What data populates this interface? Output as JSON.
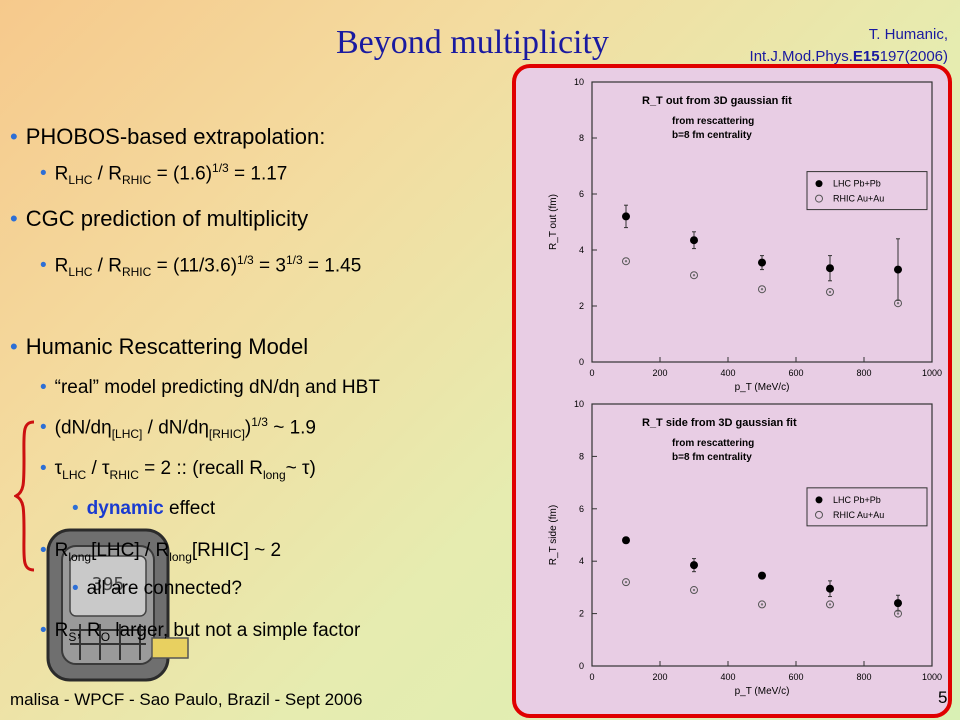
{
  "title": "Beyond multiplicity",
  "citation": {
    "line1": "T. Humanic,",
    "journal": "Int.J.Mod.Phys.",
    "vol": "E15",
    "pages": "197(2006)"
  },
  "bullets": {
    "b1": "PHOBOS-based extrapolation:",
    "b1a": {
      "r": "R",
      "s1": "LHC",
      "mid": " / R",
      "s2": "RHIC",
      "eq": " = (1.6)",
      "p": "1/3",
      "tail": " = 1.17"
    },
    "b2": "CGC prediction of multiplicity",
    "b2a": {
      "r": "R",
      "s1": "LHC",
      "mid": " / R",
      "s2": "RHIC",
      "eq": " = (11/3.6)",
      "p": "1/3",
      "mid2": " = 3",
      "p2": "1/3",
      "tail": " = 1.45"
    },
    "b3": "Humanic Rescattering Model",
    "b3a": "“real” model predicting dN/dη and HBT",
    "b3b": {
      "a": "(dN/dη",
      "s1": "[LHC]",
      "b": " / dN/dη",
      "s2": "[RHIC]",
      "c": ")",
      "p": "1/3",
      "d": " ~ 1.9"
    },
    "b3c": {
      "a": "τ",
      "s1": "LHC",
      "b": " / τ",
      "s2": "RHIC",
      "c": " = 2   ::  (recall R",
      "s3": "long",
      "d": "~ τ)"
    },
    "b3d": {
      "emph": "dynamic",
      "rest": " effect"
    },
    "b3e": {
      "a": "R",
      "s1": "long",
      "b": "[LHC] / R",
      "s2": "long",
      "c": "[RHIC] ~ 2"
    },
    "b3f": "all are connected?",
    "b3g": {
      "a": "R",
      "s1": "S",
      "b": ", R",
      "s2": "O",
      "c": " larger, but not a simple factor"
    }
  },
  "footer": "malisa - WPCF - Sao Paulo, Brazil - Sept 2006",
  "page_number": "5",
  "chart_data": [
    {
      "type": "scatter",
      "title": "R_T out from 3D gaussian fit",
      "annotation": [
        "from rescattering",
        "b=8 fm centrality"
      ],
      "xlabel": "p_T (MeV/c)",
      "ylabel": "R_T out (fm)",
      "xlim": [
        0,
        1000
      ],
      "ylim": [
        0,
        10
      ],
      "xticks": [
        "0",
        "200",
        "400",
        "600",
        "800",
        "1000"
      ],
      "yticks": [
        "0",
        "2",
        "4",
        "6",
        "8",
        "10"
      ],
      "legend_placement": "right",
      "series": [
        {
          "name": "LHC Pb+Pb",
          "x": [
            100,
            300,
            500,
            700,
            900
          ],
          "y": [
            5.2,
            4.35,
            3.55,
            3.35,
            3.3
          ],
          "err": [
            0.4,
            0.3,
            0.25,
            0.45,
            1.1
          ]
        },
        {
          "name": "RHIC Au+Au",
          "x": [
            100,
            300,
            500,
            700,
            900
          ],
          "y": [
            3.6,
            3.1,
            2.6,
            2.5,
            2.1
          ],
          "err": [
            0,
            0,
            0,
            0,
            0
          ]
        }
      ]
    },
    {
      "type": "scatter",
      "title": "R_T side from 3D gaussian fit",
      "annotation": [
        "from rescattering",
        "b=8 fm centrality"
      ],
      "xlabel": "p_T (MeV/c)",
      "ylabel": "R_T side (fm)",
      "xlim": [
        0,
        1000
      ],
      "ylim": [
        0,
        10
      ],
      "xticks": [
        "0",
        "200",
        "400",
        "600",
        "800",
        "1000"
      ],
      "yticks": [
        "0",
        "2",
        "4",
        "6",
        "8",
        "10"
      ],
      "legend_placement": "right",
      "series": [
        {
          "name": "LHC Pb+Pb",
          "x": [
            100,
            300,
            500,
            700,
            900
          ],
          "y": [
            4.8,
            3.85,
            3.45,
            2.95,
            2.4
          ],
          "err": [
            0,
            0.25,
            0,
            0.3,
            0.3
          ]
        },
        {
          "name": "RHIC Au+Au",
          "x": [
            100,
            300,
            500,
            700,
            900
          ],
          "y": [
            3.2,
            2.9,
            2.35,
            2.35,
            2.0
          ],
          "err": [
            0,
            0,
            0,
            0,
            0
          ]
        }
      ]
    }
  ]
}
